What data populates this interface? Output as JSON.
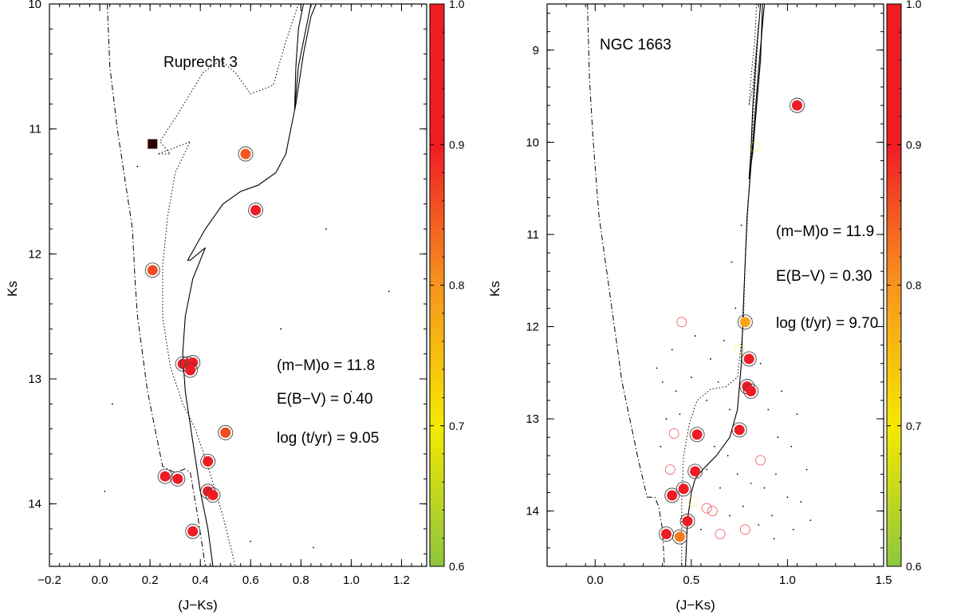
{
  "colors": {
    "colormap": [
      "#8dc63f",
      "#f5e900",
      "#f7941d",
      "#ee1c25"
    ],
    "member_ring": "#444444",
    "square": "#2b0000"
  },
  "chart_data": [
    {
      "type": "scatter",
      "name": "Ruprecht 3",
      "title": "Ruprecht 3",
      "xlabel": "(J−Ks)",
      "ylabel": "Ks",
      "xlim": [
        -0.2,
        1.3
      ],
      "ylim": [
        14.5,
        10.0
      ],
      "xticks": [
        -0.2,
        0.0,
        0.2,
        0.4,
        0.6,
        0.8,
        1.0,
        1.2
      ],
      "xtick_labels": [
        "−0.2",
        "0.0",
        "0.2",
        "0.4",
        "0.6",
        "0.8",
        "1.0",
        "1.2"
      ],
      "yticks": [
        10,
        11,
        12,
        13,
        14
      ],
      "ytick_labels": [
        "10",
        "11",
        "12",
        "13",
        "14"
      ],
      "annotations": [
        "(m−M)o = 11.8",
        "E(B−V) = 0.40",
        "log (t/yr) = 9.05"
      ],
      "colorbar": {
        "range": [
          0.6,
          1.0
        ],
        "ticks": [
          0.6,
          0.7,
          0.8,
          0.9,
          1.0
        ],
        "tick_labels": [
          "0.6",
          "0.7",
          "0.8",
          "0.9",
          "1.0"
        ]
      },
      "members": [
        {
          "x": 0.58,
          "y": 11.2,
          "p": 0.85
        },
        {
          "x": 0.62,
          "y": 11.65,
          "p": 0.97
        },
        {
          "x": 0.21,
          "y": 12.13,
          "p": 0.86
        },
        {
          "x": 0.33,
          "y": 12.88,
          "p": 0.98
        },
        {
          "x": 0.35,
          "y": 12.88,
          "p": 0.98
        },
        {
          "x": 0.37,
          "y": 12.87,
          "p": 0.97
        },
        {
          "x": 0.36,
          "y": 12.93,
          "p": 0.98
        },
        {
          "x": 0.5,
          "y": 13.43,
          "p": 0.86
        },
        {
          "x": 0.43,
          "y": 13.66,
          "p": 0.97
        },
        {
          "x": 0.26,
          "y": 13.78,
          "p": 0.98
        },
        {
          "x": 0.31,
          "y": 13.8,
          "p": 0.98
        },
        {
          "x": 0.43,
          "y": 13.9,
          "p": 0.98
        },
        {
          "x": 0.45,
          "y": 13.93,
          "p": 0.97
        },
        {
          "x": 0.37,
          "y": 14.22,
          "p": 0.98
        }
      ],
      "square": {
        "x": 0.21,
        "y": 11.12
      },
      "field_stars": [
        {
          "x": 0.15,
          "y": 11.3
        },
        {
          "x": 0.9,
          "y": 11.8
        },
        {
          "x": 0.72,
          "y": 12.6
        },
        {
          "x": 0.05,
          "y": 13.2
        },
        {
          "x": 1.0,
          "y": 13.1
        },
        {
          "x": 0.6,
          "y": 14.3
        },
        {
          "x": 0.02,
          "y": 13.9
        },
        {
          "x": 1.15,
          "y": 12.3
        },
        {
          "x": 0.85,
          "y": 14.35
        }
      ],
      "isochrone": [
        [
          0.86,
          10.0
        ],
        [
          0.84,
          10.1
        ],
        [
          0.81,
          10.4
        ],
        [
          0.78,
          10.8
        ],
        [
          0.76,
          11.0
        ],
        [
          0.74,
          11.2
        ],
        [
          0.7,
          11.35
        ],
        [
          0.63,
          11.45
        ],
        [
          0.56,
          11.5
        ],
        [
          0.49,
          11.6
        ],
        [
          0.42,
          11.8
        ],
        [
          0.35,
          12.05
        ],
        [
          0.36,
          12.05
        ],
        [
          0.42,
          11.95
        ],
        [
          0.37,
          12.2
        ],
        [
          0.34,
          12.5
        ],
        [
          0.33,
          12.8
        ],
        [
          0.34,
          13.1
        ],
        [
          0.37,
          13.5
        ],
        [
          0.4,
          13.9
        ],
        [
          0.43,
          14.2
        ],
        [
          0.45,
          14.5
        ]
      ],
      "isochrone2": [
        [
          0.81,
          10.0
        ],
        [
          0.79,
          10.2
        ],
        [
          0.78,
          10.5
        ],
        [
          0.775,
          10.85
        ],
        [
          0.79,
          10.5
        ],
        [
          0.82,
          10.2
        ],
        [
          0.84,
          10.0
        ]
      ],
      "isochrone_dotted": [
        [
          0.79,
          10.0
        ],
        [
          0.74,
          10.3
        ],
        [
          0.69,
          10.65
        ],
        [
          0.6,
          10.72
        ],
        [
          0.54,
          10.55
        ],
        [
          0.48,
          10.45
        ],
        [
          0.41,
          10.55
        ],
        [
          0.32,
          10.85
        ],
        [
          0.24,
          11.1
        ],
        [
          0.28,
          11.2
        ],
        [
          0.23,
          11.2
        ],
        [
          0.3,
          11.15
        ],
        [
          0.36,
          11.1
        ],
        [
          0.3,
          11.35
        ],
        [
          0.27,
          11.7
        ],
        [
          0.25,
          12.1
        ],
        [
          0.25,
          12.5
        ],
        [
          0.28,
          12.9
        ],
        [
          0.33,
          13.2
        ],
        [
          0.38,
          13.4
        ],
        [
          0.43,
          13.7
        ],
        [
          0.49,
          14.1
        ],
        [
          0.54,
          14.5
        ]
      ],
      "zams": [
        [
          0.03,
          10.0
        ],
        [
          0.04,
          10.5
        ],
        [
          0.07,
          11.0
        ],
        [
          0.1,
          11.4
        ],
        [
          0.13,
          11.8
        ],
        [
          0.14,
          12.2
        ],
        [
          0.15,
          12.5
        ],
        [
          0.17,
          12.8
        ],
        [
          0.19,
          13.1
        ],
        [
          0.22,
          13.4
        ],
        [
          0.25,
          13.7
        ],
        [
          0.3,
          13.75
        ],
        [
          0.34,
          13.72
        ],
        [
          0.36,
          13.75
        ],
        [
          0.39,
          14.1
        ],
        [
          0.42,
          14.5
        ]
      ]
    },
    {
      "type": "scatter",
      "name": "NGC 1663",
      "title": "NGC 1663",
      "xlabel": "(J−Ks)",
      "ylabel": "Ks",
      "xlim": [
        -0.25,
        1.5
      ],
      "ylim": [
        14.6,
        8.5
      ],
      "xticks": [
        0.0,
        0.5,
        1.0,
        1.5
      ],
      "xtick_labels": [
        "0.0",
        "0.5",
        "1.0",
        "1.5"
      ],
      "yticks": [
        9,
        10,
        11,
        12,
        13,
        14
      ],
      "ytick_labels": [
        "9",
        "10",
        "11",
        "12",
        "13",
        "14"
      ],
      "annotations": [
        "(m−M)o = 11.9",
        "E(B−V) = 0.30",
        "log (t/yr) = 9.70"
      ],
      "colorbar": {
        "range": [
          0.6,
          1.0
        ],
        "ticks": [
          0.6,
          0.7,
          0.8,
          0.9,
          1.0
        ],
        "tick_labels": [
          "0.6",
          "0.7",
          "0.8",
          "0.9",
          "1.0"
        ]
      },
      "members": [
        {
          "x": 1.05,
          "y": 9.6,
          "p": 0.98
        },
        {
          "x": 0.78,
          "y": 11.95,
          "p": 0.78
        },
        {
          "x": 0.8,
          "y": 12.35,
          "p": 0.98
        },
        {
          "x": 0.79,
          "y": 12.65,
          "p": 0.98
        },
        {
          "x": 0.81,
          "y": 12.7,
          "p": 0.98
        },
        {
          "x": 0.75,
          "y": 13.12,
          "p": 0.98
        },
        {
          "x": 0.53,
          "y": 13.17,
          "p": 0.98
        },
        {
          "x": 0.52,
          "y": 13.57,
          "p": 0.98
        },
        {
          "x": 0.46,
          "y": 13.76,
          "p": 0.98
        },
        {
          "x": 0.4,
          "y": 13.83,
          "p": 0.98
        },
        {
          "x": 0.48,
          "y": 14.11,
          "p": 0.98
        },
        {
          "x": 0.37,
          "y": 14.25,
          "p": 0.98
        },
        {
          "x": 0.44,
          "y": 14.28,
          "p": 0.82
        }
      ],
      "open_circles": [
        {
          "x": 0.45,
          "y": 11.95
        },
        {
          "x": 0.41,
          "y": 13.16
        },
        {
          "x": 0.39,
          "y": 13.55
        },
        {
          "x": 0.86,
          "y": 13.45
        },
        {
          "x": 0.58,
          "y": 13.97
        },
        {
          "x": 0.61,
          "y": 14.0
        },
        {
          "x": 0.65,
          "y": 14.25
        },
        {
          "x": 0.78,
          "y": 14.2
        }
      ],
      "faint_yellow": [
        {
          "x": 0.83,
          "y": 10.05
        },
        {
          "x": 0.75,
          "y": 12.25
        },
        {
          "x": 0.51,
          "y": 13.9
        }
      ],
      "field_stars": [
        {
          "x": 0.32,
          "y": 12.45
        },
        {
          "x": 0.35,
          "y": 12.6
        },
        {
          "x": 0.42,
          "y": 12.7
        },
        {
          "x": 0.5,
          "y": 12.55
        },
        {
          "x": 0.58,
          "y": 12.8
        },
        {
          "x": 0.64,
          "y": 12.6
        },
        {
          "x": 0.7,
          "y": 12.9
        },
        {
          "x": 0.86,
          "y": 12.4
        },
        {
          "x": 0.9,
          "y": 12.9
        },
        {
          "x": 0.95,
          "y": 13.2
        },
        {
          "x": 1.02,
          "y": 13.3
        },
        {
          "x": 0.62,
          "y": 13.3
        },
        {
          "x": 0.69,
          "y": 13.4
        },
        {
          "x": 0.74,
          "y": 13.6
        },
        {
          "x": 0.81,
          "y": 13.7
        },
        {
          "x": 0.88,
          "y": 13.75
        },
        {
          "x": 0.94,
          "y": 13.6
        },
        {
          "x": 1.0,
          "y": 13.85
        },
        {
          "x": 1.07,
          "y": 13.9
        },
        {
          "x": 1.12,
          "y": 14.1
        },
        {
          "x": 0.55,
          "y": 14.2
        },
        {
          "x": 0.7,
          "y": 14.05
        },
        {
          "x": 0.85,
          "y": 14.15
        },
        {
          "x": 0.93,
          "y": 14.3
        },
        {
          "x": 1.03,
          "y": 14.2
        },
        {
          "x": 0.34,
          "y": 13.3
        },
        {
          "x": 0.37,
          "y": 13.0
        },
        {
          "x": 0.44,
          "y": 12.95
        },
        {
          "x": 0.6,
          "y": 12.35
        },
        {
          "x": 0.67,
          "y": 12.15
        },
        {
          "x": 0.73,
          "y": 11.8
        },
        {
          "x": 0.71,
          "y": 11.3
        },
        {
          "x": 0.76,
          "y": 10.9
        },
        {
          "x": 0.65,
          "y": 13.75
        },
        {
          "x": 0.97,
          "y": 12.7
        },
        {
          "x": 1.1,
          "y": 13.55
        },
        {
          "x": 0.92,
          "y": 14.05
        },
        {
          "x": 0.58,
          "y": 13.55
        },
        {
          "x": 0.77,
          "y": 13.95
        },
        {
          "x": 1.05,
          "y": 12.95
        },
        {
          "x": 0.4,
          "y": 12.25
        },
        {
          "x": 0.52,
          "y": 12.1
        }
      ],
      "isochrone": [
        [
          0.86,
          8.5
        ],
        [
          0.84,
          9.0
        ],
        [
          0.82,
          9.6
        ],
        [
          0.81,
          10.1
        ],
        [
          0.8,
          10.4
        ],
        [
          0.82,
          10.1
        ],
        [
          0.84,
          9.6
        ],
        [
          0.86,
          9.1
        ],
        [
          0.87,
          8.5
        ]
      ],
      "isochrone_main": [
        [
          0.88,
          8.5
        ],
        [
          0.85,
          9.2
        ],
        [
          0.82,
          10.0
        ],
        [
          0.79,
          10.8
        ],
        [
          0.78,
          11.3
        ],
        [
          0.77,
          11.8
        ],
        [
          0.76,
          12.4
        ],
        [
          0.74,
          12.9
        ],
        [
          0.7,
          13.2
        ],
        [
          0.63,
          13.4
        ],
        [
          0.56,
          13.55
        ],
        [
          0.52,
          13.65
        ],
        [
          0.5,
          13.8
        ],
        [
          0.48,
          14.1
        ],
        [
          0.47,
          14.6
        ]
      ],
      "isochrone_dotted": [
        [
          0.84,
          8.5
        ],
        [
          0.83,
          8.9
        ],
        [
          0.81,
          9.3
        ],
        [
          0.8,
          9.6
        ],
        [
          0.82,
          9.4
        ],
        [
          0.85,
          8.7
        ],
        [
          0.82,
          9.8
        ],
        [
          0.8,
          10.5
        ],
        [
          0.78,
          11.3
        ],
        [
          0.77,
          12.0
        ],
        [
          0.74,
          12.55
        ],
        [
          0.68,
          12.65
        ],
        [
          0.6,
          12.68
        ],
        [
          0.53,
          12.8
        ],
        [
          0.49,
          13.05
        ],
        [
          0.46,
          13.4
        ],
        [
          0.45,
          13.9
        ],
        [
          0.45,
          14.3
        ],
        [
          0.45,
          14.6
        ]
      ],
      "zams": [
        [
          -0.04,
          8.5
        ],
        [
          -0.03,
          9.3
        ],
        [
          -0.01,
          10.0
        ],
        [
          0.02,
          10.8
        ],
        [
          0.06,
          11.4
        ],
        [
          0.1,
          12.0
        ],
        [
          0.14,
          12.6
        ],
        [
          0.18,
          13.0
        ],
        [
          0.22,
          13.4
        ],
        [
          0.27,
          13.85
        ],
        [
          0.31,
          13.85
        ],
        [
          0.33,
          13.95
        ],
        [
          0.35,
          14.2
        ],
        [
          0.36,
          14.6
        ]
      ]
    }
  ]
}
